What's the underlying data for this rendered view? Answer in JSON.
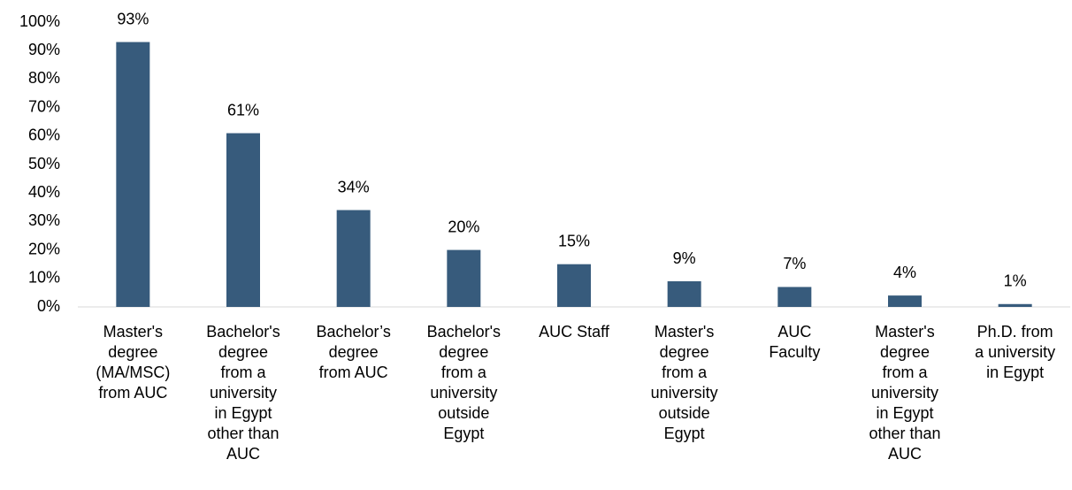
{
  "chart_data": {
    "type": "bar",
    "categories": [
      "Master's degree (MA/MSC) from AUC",
      "Bachelor's degree from a university in Egypt other than AUC",
      "Bachelor’s degree from AUC",
      "Bachelor's degree from a university outside Egypt",
      "AUC Staff",
      "Master's degree from a university outside Egypt",
      "AUC Faculty",
      "Master's degree from a university in Egypt other than AUC",
      "Ph.D. from a university in Egypt"
    ],
    "values": [
      93,
      61,
      34,
      20,
      15,
      9,
      7,
      4,
      1
    ],
    "value_labels": [
      "93%",
      "61%",
      "34%",
      "20%",
      "15%",
      "9%",
      "7%",
      "4%",
      "1%"
    ],
    "color": "#375b7c",
    "ylim": [
      0,
      100
    ],
    "yticks": [
      {
        "value": 0,
        "label": "0%"
      },
      {
        "value": 10,
        "label": "10%"
      },
      {
        "value": 20,
        "label": "20%"
      },
      {
        "value": 30,
        "label": "30%"
      },
      {
        "value": 40,
        "label": "40%"
      },
      {
        "value": 50,
        "label": "50%"
      },
      {
        "value": 60,
        "label": "60%"
      },
      {
        "value": 70,
        "label": "70%"
      },
      {
        "value": 80,
        "label": "80%"
      },
      {
        "value": 90,
        "label": "90%"
      },
      {
        "value": 100,
        "label": "100%"
      }
    ],
    "grid": false
  }
}
